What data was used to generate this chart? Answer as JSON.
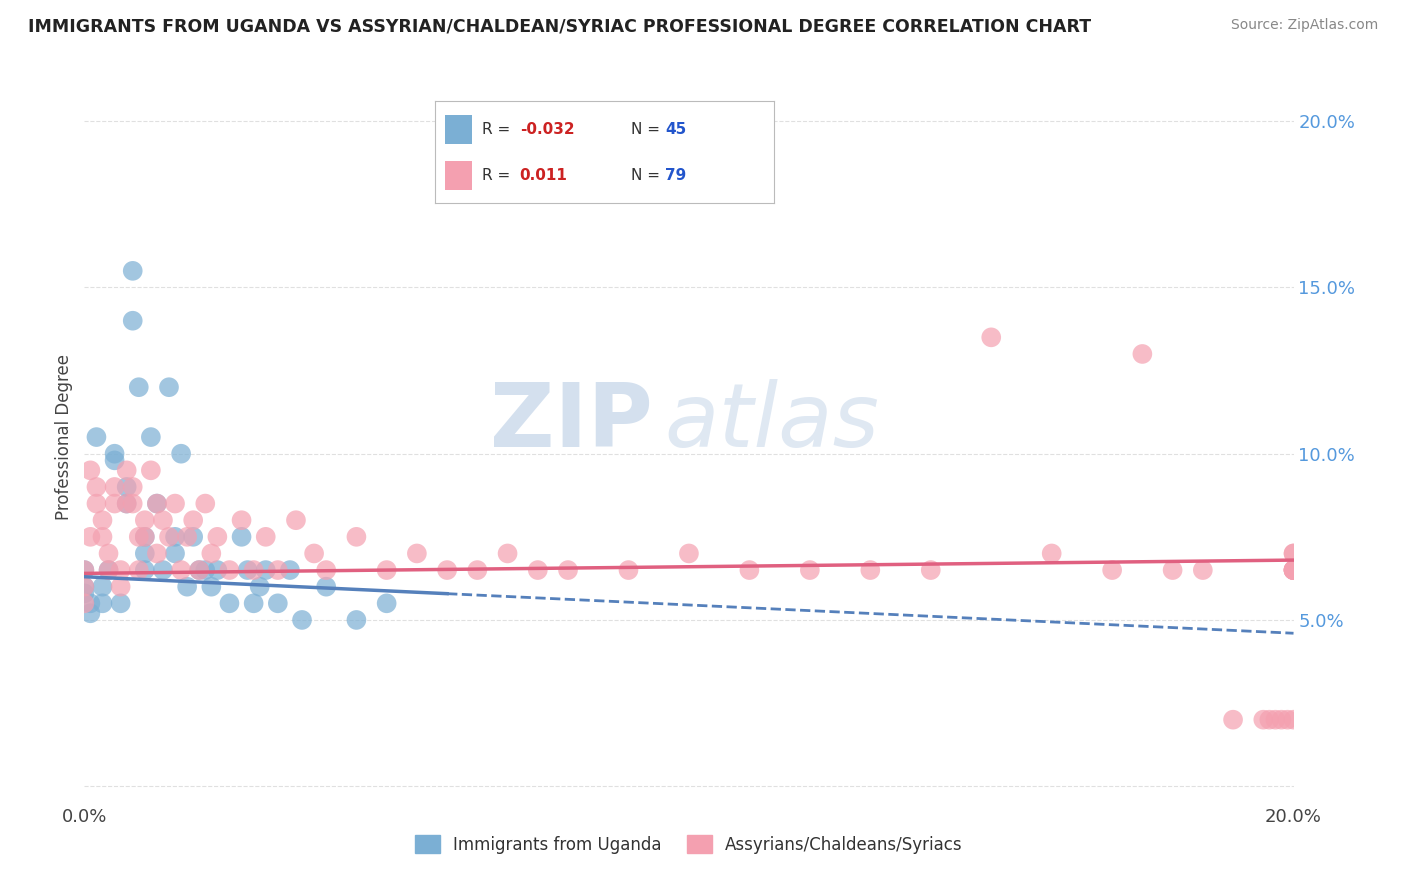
{
  "title": "IMMIGRANTS FROM UGANDA VS ASSYRIAN/CHALDEAN/SYRIAC PROFESSIONAL DEGREE CORRELATION CHART",
  "source": "Source: ZipAtlas.com",
  "ylabel": "Professional Degree",
  "xmin": 0.0,
  "xmax": 0.2,
  "ymin": -0.005,
  "ymax": 0.215,
  "ytick_vals": [
    0.0,
    0.05,
    0.1,
    0.15,
    0.2
  ],
  "right_ytick_labels": [
    "",
    "5.0%",
    "10.0%",
    "15.0%",
    "20.0%"
  ],
  "watermark_zip": "ZIP",
  "watermark_atlas": "atlas",
  "legend_blue_r": "-0.032",
  "legend_blue_n": "45",
  "legend_pink_r": "0.011",
  "legend_pink_n": "79",
  "blue_color": "#7BAFD4",
  "pink_color": "#F4A0B0",
  "blue_line_color": "#5580BB",
  "pink_line_color": "#E06080",
  "background_color": "#FFFFFF",
  "grid_color": "#E0E0E0",
  "uganda_scatter_x": [
    0.0,
    0.0,
    0.0,
    0.001,
    0.001,
    0.002,
    0.003,
    0.003,
    0.004,
    0.005,
    0.005,
    0.006,
    0.007,
    0.007,
    0.008,
    0.008,
    0.009,
    0.01,
    0.01,
    0.01,
    0.011,
    0.012,
    0.013,
    0.014,
    0.015,
    0.015,
    0.016,
    0.017,
    0.018,
    0.019,
    0.02,
    0.021,
    0.022,
    0.024,
    0.026,
    0.027,
    0.028,
    0.029,
    0.03,
    0.032,
    0.034,
    0.036,
    0.04,
    0.045,
    0.05
  ],
  "uganda_scatter_y": [
    0.06,
    0.065,
    0.058,
    0.055,
    0.052,
    0.105,
    0.06,
    0.055,
    0.065,
    0.098,
    0.1,
    0.055,
    0.085,
    0.09,
    0.14,
    0.155,
    0.12,
    0.07,
    0.075,
    0.065,
    0.105,
    0.085,
    0.065,
    0.12,
    0.07,
    0.075,
    0.1,
    0.06,
    0.075,
    0.065,
    0.065,
    0.06,
    0.065,
    0.055,
    0.075,
    0.065,
    0.055,
    0.06,
    0.065,
    0.055,
    0.065,
    0.05,
    0.06,
    0.05,
    0.055
  ],
  "assyrian_scatter_x": [
    0.0,
    0.0,
    0.0,
    0.001,
    0.001,
    0.002,
    0.002,
    0.003,
    0.003,
    0.004,
    0.004,
    0.005,
    0.005,
    0.006,
    0.006,
    0.007,
    0.007,
    0.008,
    0.008,
    0.009,
    0.009,
    0.01,
    0.01,
    0.011,
    0.012,
    0.012,
    0.013,
    0.014,
    0.015,
    0.016,
    0.017,
    0.018,
    0.019,
    0.02,
    0.021,
    0.022,
    0.024,
    0.026,
    0.028,
    0.03,
    0.032,
    0.035,
    0.038,
    0.04,
    0.045,
    0.05,
    0.055,
    0.06,
    0.065,
    0.07,
    0.075,
    0.08,
    0.09,
    0.1,
    0.11,
    0.12,
    0.13,
    0.14,
    0.15,
    0.16,
    0.17,
    0.175,
    0.18,
    0.185,
    0.19,
    0.195,
    0.196,
    0.197,
    0.198,
    0.199,
    0.2,
    0.2,
    0.2,
    0.2,
    0.2,
    0.2,
    0.2,
    0.2,
    0.2
  ],
  "assyrian_scatter_y": [
    0.065,
    0.06,
    0.055,
    0.095,
    0.075,
    0.085,
    0.09,
    0.08,
    0.075,
    0.07,
    0.065,
    0.09,
    0.085,
    0.065,
    0.06,
    0.095,
    0.085,
    0.09,
    0.085,
    0.075,
    0.065,
    0.08,
    0.075,
    0.095,
    0.085,
    0.07,
    0.08,
    0.075,
    0.085,
    0.065,
    0.075,
    0.08,
    0.065,
    0.085,
    0.07,
    0.075,
    0.065,
    0.08,
    0.065,
    0.075,
    0.065,
    0.08,
    0.07,
    0.065,
    0.075,
    0.065,
    0.07,
    0.065,
    0.065,
    0.07,
    0.065,
    0.065,
    0.065,
    0.07,
    0.065,
    0.065,
    0.065,
    0.065,
    0.135,
    0.07,
    0.065,
    0.13,
    0.065,
    0.065,
    0.02,
    0.02,
    0.02,
    0.02,
    0.02,
    0.02,
    0.065,
    0.065,
    0.07,
    0.065,
    0.065,
    0.07,
    0.065,
    0.065,
    0.02
  ]
}
